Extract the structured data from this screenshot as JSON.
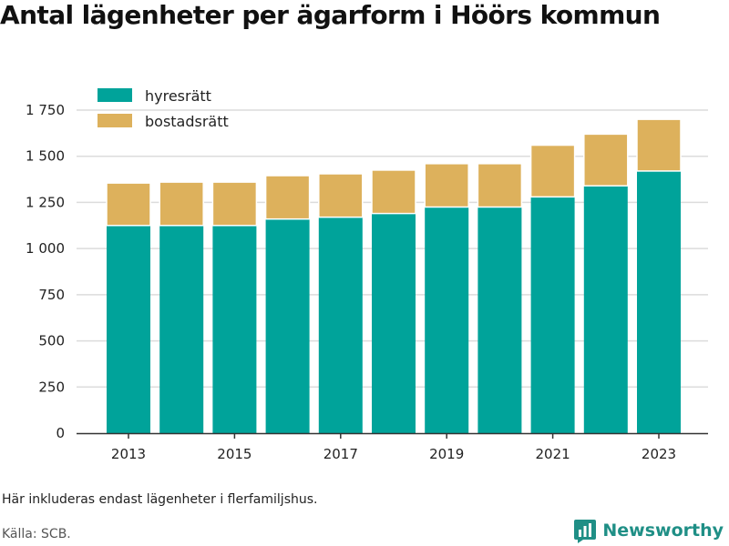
{
  "chart_data": {
    "type": "bar",
    "stacked": true,
    "title": "Antal lägenheter per ägarform i Höörs kommun",
    "x": [
      2013,
      2014,
      2015,
      2016,
      2017,
      2018,
      2019,
      2020,
      2021,
      2022,
      2023
    ],
    "x_tick_labels": [
      "2013",
      "2015",
      "2017",
      "2019",
      "2021",
      "2023"
    ],
    "y_tick_labels": [
      "0",
      "250",
      "500",
      "750",
      "1 000",
      "1 250",
      "1 500",
      "1 750"
    ],
    "ylim": [
      0,
      1850
    ],
    "grid": true,
    "legend_position": "top-left",
    "series": [
      {
        "name": "hyresrätt",
        "color": "#00a39a",
        "values": [
          1125,
          1125,
          1125,
          1160,
          1170,
          1190,
          1225,
          1225,
          1280,
          1340,
          1420
        ]
      },
      {
        "name": "bostadsrätt",
        "color": "#ddb15c",
        "values": [
          230,
          235,
          235,
          235,
          235,
          235,
          235,
          235,
          280,
          280,
          280
        ]
      }
    ]
  },
  "footer": {
    "note": "Här inkluderas endast lägenheter i flerfamiljshus.",
    "source": "Källa: SCB.",
    "brand": "Newsworthy"
  },
  "colors": {
    "grid": "#dcdcdc",
    "axis": "#333333",
    "brand": "#1f8f86"
  }
}
